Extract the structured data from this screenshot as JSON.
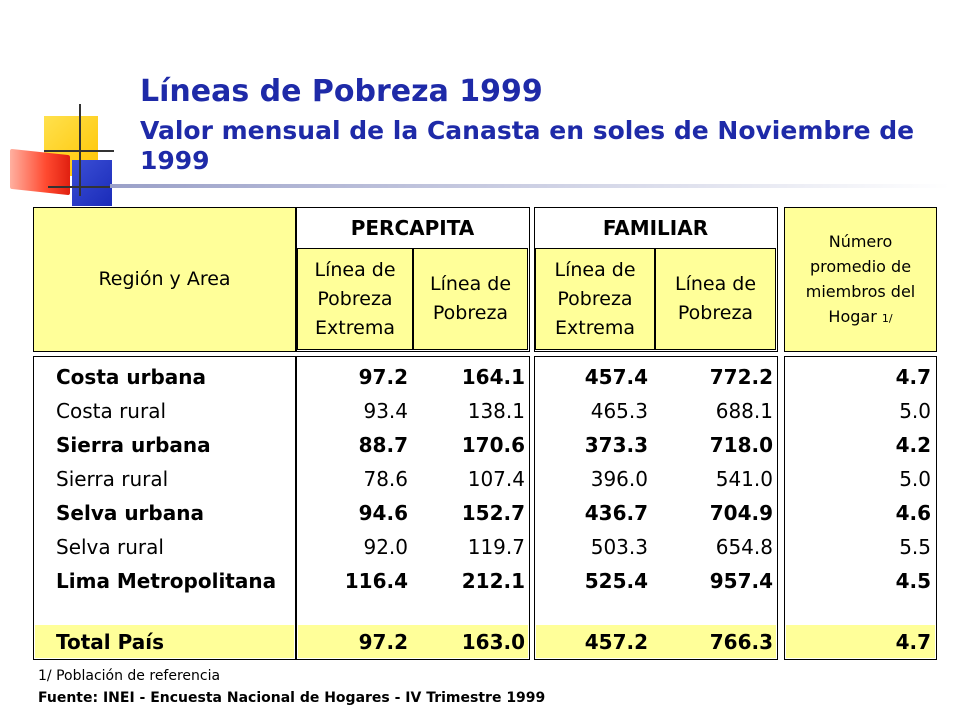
{
  "title": {
    "main": "Líneas de Pobreza 1999",
    "sub": "Valor mensual de la Canasta en soles de Noviembre de 1999"
  },
  "header": {
    "region_area": "Región y Area",
    "percapita": "PERCAPITA",
    "familiar": "FAMILIAR",
    "pc_extrema": [
      "Línea de",
      "Pobreza",
      "Extrema"
    ],
    "pc_pobreza": [
      "Línea de",
      "Pobreza"
    ],
    "fam_extrema": [
      "Línea de",
      "Pobreza",
      "Extrema"
    ],
    "fam_pobreza": [
      "Línea de",
      "Pobreza"
    ],
    "miembros": [
      "Número",
      "promedio de",
      "miembros del",
      "Hogar"
    ],
    "miembros_note": "1/"
  },
  "rows": [
    {
      "region": "Costa urbana",
      "pc_ext": "97.2",
      "pc_pob": "164.1",
      "fam_ext": "457.4",
      "fam_pob": "772.2",
      "miembros": "4.7"
    },
    {
      "region": "Costa rural",
      "pc_ext": "93.4",
      "pc_pob": "138.1",
      "fam_ext": "465.3",
      "fam_pob": "688.1",
      "miembros": "5.0"
    },
    {
      "region": "Sierra urbana",
      "pc_ext": "88.7",
      "pc_pob": "170.6",
      "fam_ext": "373.3",
      "fam_pob": "718.0",
      "miembros": "4.2"
    },
    {
      "region": "Sierra rural",
      "pc_ext": "78.6",
      "pc_pob": "107.4",
      "fam_ext": "396.0",
      "fam_pob": "541.0",
      "miembros": "5.0"
    },
    {
      "region": "Selva urbana",
      "pc_ext": "94.6",
      "pc_pob": "152.7",
      "fam_ext": "436.7",
      "fam_pob": "704.9",
      "miembros": "4.6"
    },
    {
      "region": "Selva rural",
      "pc_ext": "92.0",
      "pc_pob": "119.7",
      "fam_ext": "503.3",
      "fam_pob": "654.8",
      "miembros": "5.5"
    },
    {
      "region": "Lima Metropolitana",
      "pc_ext": "116.4",
      "pc_pob": "212.1",
      "fam_ext": "525.4",
      "fam_pob": "957.4",
      "miembros": "4.5"
    }
  ],
  "total": {
    "region": "Total País",
    "pc_ext": "97.2",
    "pc_pob": "163.0",
    "fam_ext": "457.2",
    "fam_pob": "766.3",
    "miembros": "4.7"
  },
  "footnotes": {
    "note1": "1/ Población de referencia",
    "source": "Fuente: INEI - Encuesta Nacional de Hogares - IV Trimestre 1999"
  }
}
